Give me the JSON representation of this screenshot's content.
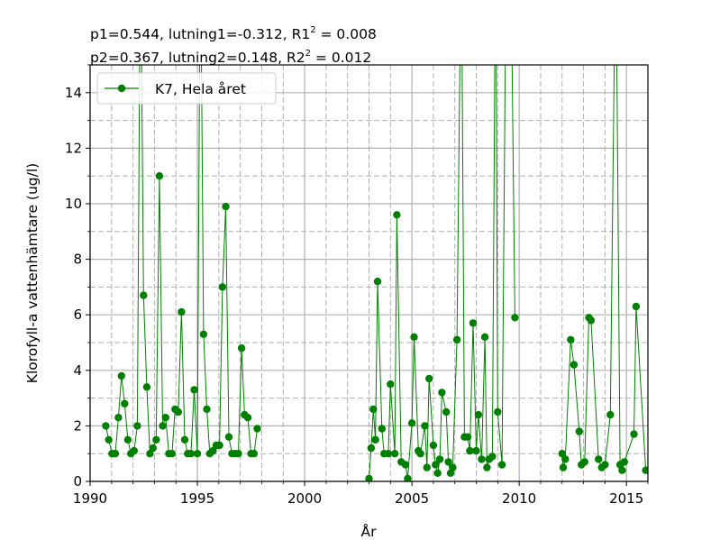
{
  "title": {
    "line1": {
      "p_text": "p1=0.544, lutning1=-0.312, R1",
      "sup": "2",
      "tail": " = 0.008"
    },
    "line2": {
      "p_text": "p2=0.367, lutning2=0.148, R2",
      "sup": "2",
      "tail": " = 0.012"
    }
  },
  "colors": {
    "series": "#008000",
    "grid_major": "#b0b0b0",
    "grid_minor": "#b0b0b0",
    "axes": "#000000"
  },
  "chart_data": {
    "type": "line",
    "xlabel": "År",
    "ylabel": "Klorofyll-a vattenhämtare (ug/l)",
    "xlim": [
      1990,
      2016
    ],
    "ylim": [
      0,
      15
    ],
    "xticks": [
      1990,
      1995,
      2000,
      2005,
      2010,
      2015
    ],
    "xtick_labels": [
      "1990",
      "1995",
      "2000",
      "2005",
      "2010",
      "2015"
    ],
    "yticks": [
      0,
      2,
      4,
      6,
      8,
      10,
      12,
      14
    ],
    "ytick_labels": [
      "0",
      "2",
      "4",
      "6",
      "8",
      "10",
      "12",
      "14"
    ],
    "grid": "major and minor, minor dashed",
    "legend": {
      "position": "top-left",
      "entries": [
        "K7, Hela året"
      ]
    },
    "series": [
      {
        "name": "K7, Hela året",
        "segments": [
          [
            [
              1990.73,
              2.0
            ],
            [
              1990.87,
              1.5
            ],
            [
              1991.02,
              1.0
            ],
            [
              1991.17,
              1.0
            ],
            [
              1991.32,
              2.3
            ],
            [
              1991.46,
              3.8
            ],
            [
              1991.61,
              2.8
            ],
            [
              1991.76,
              1.5
            ],
            [
              1991.9,
              1.0
            ],
            [
              1992.05,
              1.1
            ],
            [
              1992.2,
              2.0
            ],
            [
              1992.35,
              20.0
            ],
            [
              1992.49,
              6.7
            ],
            [
              1992.64,
              3.4
            ],
            [
              1992.79,
              1.0
            ],
            [
              1992.93,
              1.2
            ],
            [
              1993.08,
              1.5
            ],
            [
              1993.23,
              11.0
            ],
            [
              1993.38,
              2.0
            ],
            [
              1993.52,
              2.3
            ],
            [
              1993.67,
              1.0
            ],
            [
              1993.82,
              1.0
            ],
            [
              1993.96,
              2.6
            ],
            [
              1994.11,
              2.5
            ],
            [
              1994.26,
              6.1
            ],
            [
              1994.41,
              1.5
            ],
            [
              1994.55,
              1.0
            ],
            [
              1994.7,
              1.0
            ],
            [
              1994.85,
              3.3
            ],
            [
              1995.0,
              1.0
            ],
            [
              1995.14,
              20.0
            ],
            [
              1995.29,
              5.3
            ],
            [
              1995.44,
              2.6
            ],
            [
              1995.58,
              1.0
            ],
            [
              1995.73,
              1.1
            ],
            [
              1995.88,
              1.3
            ],
            [
              1996.03,
              1.3
            ],
            [
              1996.17,
              7.0
            ],
            [
              1996.32,
              9.9
            ],
            [
              1996.47,
              1.6
            ],
            [
              1996.61,
              1.0
            ],
            [
              1996.76,
              1.0
            ],
            [
              1996.91,
              1.0
            ],
            [
              1997.06,
              4.8
            ],
            [
              1997.2,
              2.4
            ],
            [
              1997.35,
              2.3
            ],
            [
              1997.5,
              1.0
            ],
            [
              1997.64,
              1.0
            ],
            [
              1997.79,
              1.9
            ]
          ],
          [
            [
              2003.0,
              0.1
            ],
            [
              2003.1,
              1.2
            ],
            [
              2003.2,
              2.6
            ],
            [
              2003.3,
              1.5
            ],
            [
              2003.4,
              7.2
            ],
            [
              2003.6,
              1.9
            ],
            [
              2003.7,
              1.0
            ],
            [
              2003.9,
              1.0
            ],
            [
              2004.0,
              3.5
            ],
            [
              2004.2,
              1.0
            ],
            [
              2004.3,
              9.6
            ],
            [
              2004.5,
              0.7
            ],
            [
              2004.7,
              0.6
            ],
            [
              2004.8,
              0.1
            ],
            [
              2005.0,
              2.1
            ],
            [
              2005.1,
              5.2
            ],
            [
              2005.3,
              1.1
            ],
            [
              2005.4,
              1.0
            ],
            [
              2005.6,
              2.0
            ],
            [
              2005.7,
              0.5
            ],
            [
              2005.8,
              3.7
            ],
            [
              2006.0,
              1.3
            ],
            [
              2006.1,
              0.6
            ],
            [
              2006.2,
              0.3
            ],
            [
              2006.3,
              0.8
            ],
            [
              2006.4,
              3.2
            ],
            [
              2006.6,
              2.5
            ],
            [
              2006.7,
              0.7
            ],
            [
              2006.8,
              0.3
            ],
            [
              2006.9,
              0.5
            ],
            [
              2007.1,
              5.1
            ],
            [
              2007.3,
              20.0
            ],
            [
              2007.45,
              1.6
            ],
            [
              2007.6,
              1.6
            ],
            [
              2007.7,
              1.1
            ],
            [
              2007.85,
              5.7
            ],
            [
              2008.0,
              1.1
            ],
            [
              2008.1,
              2.4
            ],
            [
              2008.25,
              0.8
            ],
            [
              2008.4,
              5.2
            ],
            [
              2008.5,
              0.5
            ],
            [
              2008.6,
              0.8
            ],
            [
              2008.75,
              0.9
            ],
            [
              2008.9,
              20.0
            ],
            [
              2009.0,
              2.5
            ],
            [
              2009.2,
              0.6
            ],
            [
              2009.4,
              20.0
            ],
            [
              2009.6,
              20.0
            ],
            [
              2009.8,
              5.9
            ]
          ],
          [
            [
              2012.0,
              1.0
            ],
            [
              2012.05,
              0.5
            ],
            [
              2012.15,
              0.8
            ],
            [
              2012.4,
              5.1
            ],
            [
              2012.55,
              4.2
            ],
            [
              2012.8,
              1.8
            ],
            [
              2012.9,
              0.6
            ],
            [
              2013.05,
              0.7
            ],
            [
              2013.25,
              5.9
            ],
            [
              2013.35,
              5.8
            ],
            [
              2013.7,
              0.8
            ],
            [
              2013.85,
              0.5
            ],
            [
              2014.0,
              0.6
            ],
            [
              2014.25,
              2.4
            ],
            [
              2014.5,
              20.0
            ],
            [
              2014.7,
              0.6
            ],
            [
              2014.8,
              0.4
            ],
            [
              2014.9,
              0.7
            ],
            [
              2015.35,
              1.7
            ],
            [
              2015.45,
              6.3
            ],
            [
              2015.9,
              0.4
            ]
          ]
        ]
      }
    ]
  }
}
